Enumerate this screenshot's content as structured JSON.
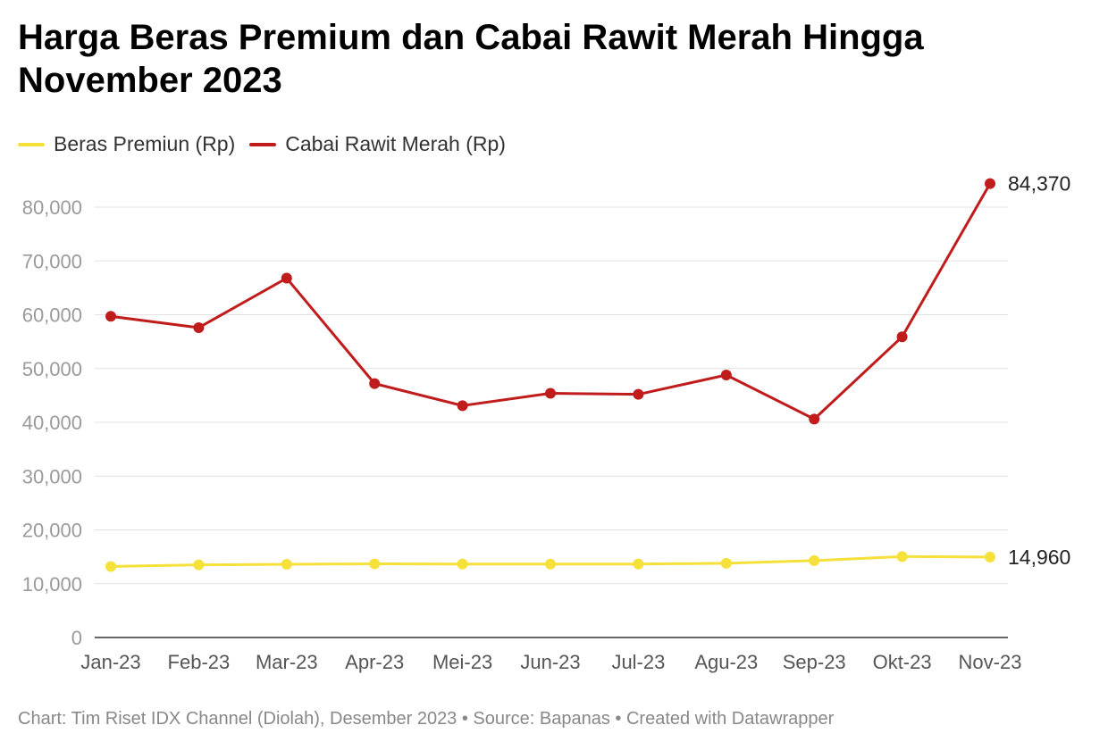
{
  "chart_data": {
    "type": "line",
    "title": "Harga Beras Premium dan Cabai Rawit Merah Hingga November 2023",
    "categories": [
      "Jan-23",
      "Feb-23",
      "Mar-23",
      "Apr-23",
      "Mei-23",
      "Jun-23",
      "Jul-23",
      "Agu-23",
      "Sep-23",
      "Okt-23",
      "Nov-23"
    ],
    "series": [
      {
        "name": "Beras Premiun (Rp)",
        "color": "#f5e13a",
        "values": [
          13200,
          13500,
          13600,
          13700,
          13650,
          13650,
          13650,
          13800,
          14300,
          15050,
          14960
        ],
        "end_label": "14,960"
      },
      {
        "name": "Cabai Rawit Merah (Rp)",
        "color": "#c01c1c",
        "values": [
          59700,
          57600,
          66800,
          47200,
          43100,
          45400,
          45200,
          48800,
          40600,
          55900,
          84370
        ],
        "end_label": "84,370"
      }
    ],
    "y_ticks": [
      "0",
      "10,000",
      "20,000",
      "30,000",
      "40,000",
      "50,000",
      "60,000",
      "70,000",
      "80,000"
    ],
    "ylim": [
      0,
      80000
    ],
    "grid": true,
    "legend_position": "top-left"
  },
  "footer": "Chart: Tim Riset IDX Channel (Diolah), Desember 2023 • Source: Bapanas • Created with Datawrapper"
}
